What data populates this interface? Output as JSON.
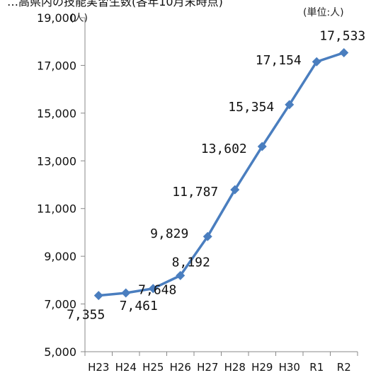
{
  "header": {
    "partial_title": "…高県内の技能実習生数(各年10月末時点)"
  },
  "chart_data": {
    "type": "line",
    "categories": [
      "H23",
      "H24",
      "H25",
      "H26",
      "H27",
      "H28",
      "H29",
      "H30",
      "R1",
      "R2"
    ],
    "series": [
      {
        "values": [
          7355,
          7461,
          7648,
          8192,
          9829,
          11787,
          13602,
          15354,
          17154,
          17533
        ]
      }
    ],
    "data_labels": [
      "7,355",
      "7,461",
      "7,648",
      "8,192",
      "9,829",
      "11,787",
      "13,602",
      "15,354",
      "17,154",
      "17,533"
    ],
    "ylim": [
      5000,
      19000
    ],
    "y_ticks": [
      5000,
      7000,
      9000,
      11000,
      13000,
      15000,
      17000,
      19000
    ],
    "y_tick_labels": [
      "5,000",
      "7,000",
      "9,000",
      "11,000",
      "13,000",
      "15,000",
      "17,000",
      "19,000"
    ],
    "y_unit_label": "(人)",
    "unit_note": "(単位:人)",
    "grid": false,
    "line_color": "#4a7ebf",
    "marker": "diamond"
  }
}
